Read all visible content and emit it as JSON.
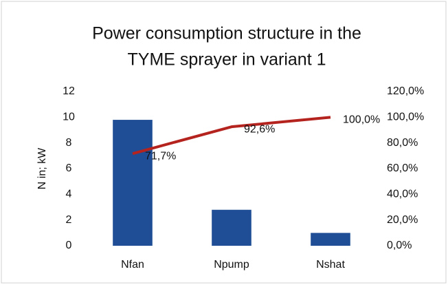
{
  "chart_data": {
    "type": "bar",
    "title": [
      "Power consumption structure in the",
      "TYME sprayer in variant  1"
    ],
    "ylabel": "N in; kW",
    "categories": [
      "Nfan",
      "Npump",
      "Nshat"
    ],
    "series": [
      {
        "type": "bar",
        "color": "#1f4e96",
        "values": [
          9.8,
          2.8,
          1.0
        ]
      },
      {
        "type": "line",
        "axis": "y2",
        "color": "#b5231f",
        "values": [
          71.7,
          92.6,
          100.0
        ],
        "value_labels": [
          "71,7%",
          "92,6%",
          "100,0%"
        ]
      }
    ],
    "ylim": [
      0,
      12
    ],
    "yticks": [
      0,
      2,
      4,
      6,
      8,
      10,
      12
    ],
    "y2lim": [
      0,
      120
    ],
    "y2ticks": [
      {
        "value": 0,
        "label": "0,0%"
      },
      {
        "value": 20,
        "label": "20,0%"
      },
      {
        "value": 40,
        "label": "40,0%"
      },
      {
        "value": 60,
        "label": "60,0%"
      },
      {
        "value": 80,
        "label": "80,0%"
      },
      {
        "value": 100,
        "label": "100,0%"
      },
      {
        "value": 120,
        "label": "120,0%"
      }
    ],
    "grid": false
  }
}
